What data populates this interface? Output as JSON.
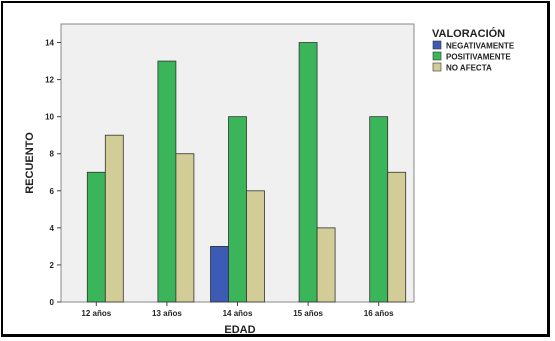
{
  "chart_data": {
    "type": "bar",
    "title": "",
    "xlabel": "EDAD",
    "ylabel": "RECUENTO",
    "categories": [
      "12 años",
      "13 años",
      "14 años",
      "15 años",
      "16 años"
    ],
    "ylim": [
      0,
      15
    ],
    "yticks": [
      0,
      2,
      4,
      6,
      8,
      10,
      12,
      14
    ],
    "grid": false,
    "legend_title": "VALORACIÓN",
    "legend_position": "right",
    "series": [
      {
        "name": "NEGATIVAMENTE",
        "color": "#3b5bb5",
        "values": [
          0,
          0,
          3,
          0,
          0
        ]
      },
      {
        "name": "POSITIVAMENTE",
        "color": "#3ab55a",
        "values": [
          7,
          13,
          10,
          14,
          10
        ]
      },
      {
        "name": "NO AFECTA",
        "color": "#d2cc97",
        "values": [
          9,
          8,
          6,
          4,
          7
        ]
      }
    ]
  }
}
